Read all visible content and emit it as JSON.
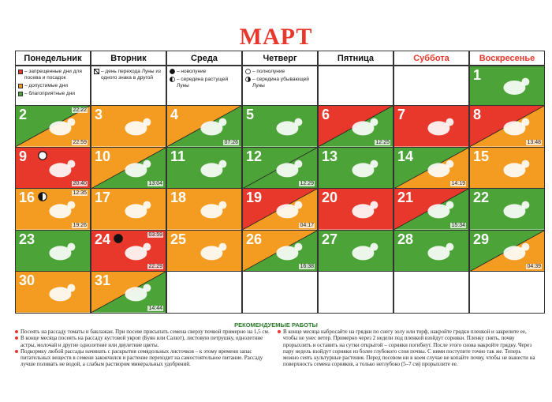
{
  "title": "МАРТ",
  "weekdays": [
    "Понедельник",
    "Вторник",
    "Среда",
    "Четверг",
    "Пятница",
    "Суббота",
    "Воскресенье"
  ],
  "legend": [
    {
      "items": [
        {
          "color": "#e8372b",
          "text": "– запрещенные дни для посева и посадок"
        },
        {
          "color": "#f49b22",
          "text": "– допустимые дни"
        },
        {
          "color": "#4ca338",
          "text": "– благоприятные дни"
        }
      ]
    },
    {
      "items": [
        {
          "text": "– день перехода Луны из одного знака в другой"
        }
      ]
    },
    {
      "items": [
        {
          "moon": "new",
          "text": "– новолуние"
        },
        {
          "moon": "first-quarter",
          "text": "– середина растущей Луны"
        }
      ]
    },
    {
      "items": [
        {
          "moon": "full",
          "text": "– полнолуние"
        },
        {
          "moon": "last-quarter",
          "text": "– середина убывающей Луны"
        }
      ]
    }
  ],
  "days": [
    {
      "day": 1,
      "colors": [
        "#4ca338"
      ],
      "times": []
    },
    {
      "day": 2,
      "colors": [
        "#4ca338",
        "#f49b22"
      ],
      "times": [
        "22:22",
        "22:59"
      ]
    },
    {
      "day": 3,
      "colors": [
        "#f49b22"
      ],
      "times": []
    },
    {
      "day": 4,
      "colors": [
        "#f49b22",
        "#4ca338"
      ],
      "times": [
        "07:26"
      ]
    },
    {
      "day": 5,
      "colors": [
        "#4ca338"
      ],
      "times": []
    },
    {
      "day": 6,
      "colors": [
        "#e8372b",
        "#4ca338"
      ],
      "times": [
        "12:25"
      ]
    },
    {
      "day": 7,
      "colors": [
        "#e8372b"
      ],
      "times": []
    },
    {
      "day": 8,
      "colors": [
        "#e8372b",
        "#f49b22"
      ],
      "times": [
        "13:48"
      ]
    },
    {
      "day": 9,
      "colors": [
        "#e8372b"
      ],
      "times": [
        "20:40"
      ],
      "moon": "full"
    },
    {
      "day": 10,
      "colors": [
        "#f49b22",
        "#4ca338"
      ],
      "times": [
        "13:04"
      ]
    },
    {
      "day": 11,
      "colors": [
        "#4ca338"
      ],
      "times": []
    },
    {
      "day": 12,
      "colors": [
        "#4ca338",
        "#4ca338"
      ],
      "times": [
        "12:29"
      ]
    },
    {
      "day": 13,
      "colors": [
        "#4ca338"
      ],
      "times": []
    },
    {
      "day": 14,
      "colors": [
        "#4ca338",
        "#f49b22"
      ],
      "times": [
        "14:19"
      ]
    },
    {
      "day": 15,
      "colors": [
        "#f49b22"
      ],
      "times": []
    },
    {
      "day": 16,
      "colors": [
        "#f49b22"
      ],
      "times": [
        "12:35",
        "19:26"
      ],
      "moon": "first-quarter"
    },
    {
      "day": 17,
      "colors": [
        "#f49b22"
      ],
      "times": []
    },
    {
      "day": 18,
      "colors": [
        "#f49b22"
      ],
      "times": []
    },
    {
      "day": 19,
      "colors": [
        "#e8372b",
        "#f49b22"
      ],
      "times": [
        "04:17"
      ]
    },
    {
      "day": 20,
      "colors": [
        "#e8372b"
      ],
      "times": []
    },
    {
      "day": 21,
      "colors": [
        "#e8372b",
        "#4ca338"
      ],
      "times": [
        "15:34"
      ]
    },
    {
      "day": 22,
      "colors": [
        "#4ca338"
      ],
      "times": []
    },
    {
      "day": 23,
      "colors": [
        "#4ca338"
      ],
      "times": []
    },
    {
      "day": 24,
      "colors": [
        "#e8372b"
      ],
      "times": [
        "03:59",
        "22:29"
      ],
      "moon": "new"
    },
    {
      "day": 25,
      "colors": [
        "#f49b22"
      ],
      "times": []
    },
    {
      "day": 26,
      "colors": [
        "#f49b22",
        "#4ca338"
      ],
      "times": [
        "16:38"
      ]
    },
    {
      "day": 27,
      "colors": [
        "#4ca338"
      ],
      "times": []
    },
    {
      "day": 28,
      "colors": [
        "#4ca338"
      ],
      "times": []
    },
    {
      "day": 29,
      "colors": [
        "#4ca338",
        "#f49b22"
      ],
      "times": [
        "04:39"
      ]
    },
    {
      "day": 30,
      "colors": [
        "#f49b22"
      ],
      "times": []
    },
    {
      "day": 31,
      "colors": [
        "#f49b22",
        "#4ca338"
      ],
      "times": [
        "14:44"
      ]
    }
  ],
  "recommendations": {
    "title": "РЕКОМЕНДУЕМЫЕ РАБОТЫ",
    "left": [
      "Посеять на рассаду томаты и баклажан. При посеве присыпать семена сверху почвой примерно на 1,5 см.",
      "В конце месяца посеять на рассаду кустовой укроп (Буян или Салют), листовую петрушку, однолетние астры, молочай и другие однолетние или двулетние цветы.",
      "Подкормку любой рассады начинать с раскрытия семядольных листочков – к этому времени запас питательных веществ в семени закончился и растение переходит на самостоятельное питание. Рассаду лучше поливать не водой, а слабым раствором минеральных удобрений."
    ],
    "right": [
      "В конце месяца набросайте на грядки по снегу золу или торф, накройте грядки пленкой и закрепите ее, чтобы не унес ветер. Примерно через 2 недели под пленкой взойдут сорняки. Пленку снять, почву прорыхлить и оставить на сутки открытой – сорняки погибнут. После этого снова накройте грядку. Через пару недель взойдут сорняки из более глубокого слоя почвы. С ними поступите точно так же. Теперь можно сеять культурные растения. Перед посевом ни в коем случае не копайте почву, чтобы не вынести на поверхность семена сорняков, а только неглубоко (5–7 см) прорыхлите ее."
    ]
  }
}
